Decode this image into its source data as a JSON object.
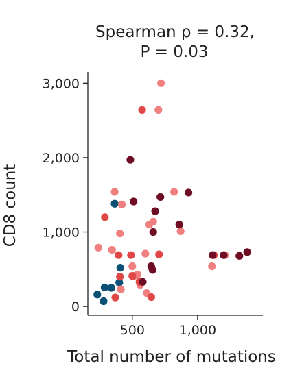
{
  "chart_data": {
    "type": "scatter",
    "title": "Spearman ρ = 0.32,",
    "subtitle": "P = 0.03",
    "xlabel": "Total number of mutations",
    "ylabel": "CD8 count",
    "xlim": [
      170,
      1500
    ],
    "ylim": [
      -100,
      3150
    ],
    "xticks": [
      500,
      1000
    ],
    "xtick_labels": [
      "500",
      "1,000"
    ],
    "yticks": [
      0,
      1000,
      2000,
      3000
    ],
    "ytick_labels": [
      "0",
      "1,000",
      "2,000",
      "3,000"
    ],
    "grid": false,
    "legend": false,
    "series": [
      {
        "color": "#0b5075",
        "points": [
          [
            232,
            160
          ],
          [
            280,
            70
          ],
          [
            288,
            255
          ],
          [
            340,
            250
          ],
          [
            365,
            1380
          ],
          [
            400,
            320
          ],
          [
            408,
            520
          ]
        ]
      },
      {
        "color": "#f08080",
        "points": [
          [
            240,
            790
          ],
          [
            345,
            760
          ],
          [
            365,
            1540
          ],
          [
            405,
            980
          ],
          [
            412,
            230
          ],
          [
            420,
            1370
          ],
          [
            500,
            540
          ],
          [
            515,
            410
          ],
          [
            540,
            430
          ],
          [
            560,
            290
          ],
          [
            600,
            710
          ],
          [
            610,
            180
          ],
          [
            630,
            1100
          ],
          [
            660,
            1140
          ],
          [
            700,
            2640
          ],
          [
            720,
            3000
          ],
          [
            820,
            1540
          ],
          [
            870,
            1010
          ],
          [
            1110,
            540
          ],
          [
            1210,
            690
          ]
        ]
      },
      {
        "color": "#e04848",
        "points": [
          [
            290,
            1200
          ],
          [
            370,
            120
          ],
          [
            395,
            690
          ],
          [
            405,
            400
          ],
          [
            490,
            690
          ],
          [
            500,
            410
          ],
          [
            555,
            330
          ],
          [
            575,
            2640
          ],
          [
            645,
            125
          ],
          [
            705,
            700
          ],
          [
            1125,
            690
          ]
        ]
      },
      {
        "color": "#6e0d24",
        "points": [
          [
            485,
            1970
          ],
          [
            510,
            1410
          ],
          [
            580,
            330
          ],
          [
            645,
            540
          ],
          [
            655,
            490
          ],
          [
            660,
            1000
          ],
          [
            675,
            1280
          ],
          [
            715,
            1470
          ],
          [
            860,
            1100
          ],
          [
            930,
            1530
          ],
          [
            1115,
            690
          ],
          [
            1200,
            690
          ],
          [
            1320,
            680
          ],
          [
            1380,
            730
          ]
        ]
      }
    ]
  }
}
